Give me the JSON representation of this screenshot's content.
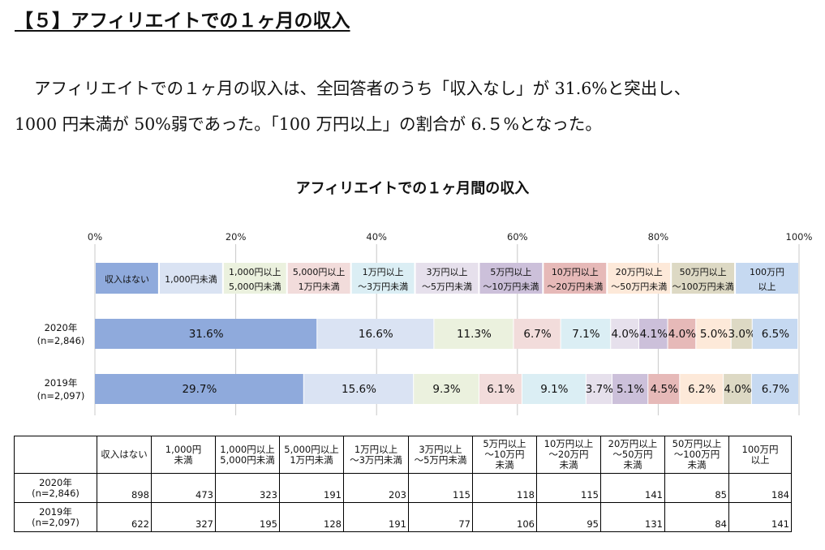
{
  "heading": "【５】アフィリエイトでの１ヶ月の収入",
  "paragraph": {
    "line1": "アフィリエイトでの１ヶ月の収入は、全回答者のうち「収入なし」が 31.6%と突出し、",
    "line2": "1000 円未満が 50%弱であった。「100 万円以上」の割合が 6.５%となった。"
  },
  "chart_data": {
    "type": "bar",
    "orientation": "horizontal-stacked-100",
    "title": "アフィリエイトでの１ヶ月間の収入",
    "x_ticks": [
      "0%",
      "20%",
      "40%",
      "60%",
      "80%",
      "100%"
    ],
    "xlim": [
      0,
      100
    ],
    "grid": true,
    "legend_position": "top",
    "legend": [
      [
        "収入はない"
      ],
      [
        "1,000円未満"
      ],
      [
        "1,000円以上",
        "5,000円未満"
      ],
      [
        "5,000円以上",
        "1万円未満"
      ],
      [
        "1万円以上",
        "～3万円未満"
      ],
      [
        "3万円以上",
        "～5万円未満"
      ],
      [
        "5万円以上",
        "～10万円未満"
      ],
      [
        "10万円以上",
        "～20万円未満"
      ],
      [
        "20万円以上",
        "～50万円未満"
      ],
      [
        "50万円以上",
        "～100万円未満"
      ],
      [
        "100万円",
        "以上"
      ]
    ],
    "colors": [
      "#8faadc",
      "#dae3f3",
      "#ebf1de",
      "#f2dcdb",
      "#dbeef4",
      "#e6e0ec",
      "#ccc0da",
      "#e6b9b8",
      "#fde9d9",
      "#ddd9c4",
      "#c6d9f1"
    ],
    "series": [
      {
        "name": "2020年",
        "sublabel": "(n=2,846)",
        "values": [
          31.6,
          16.6,
          11.3,
          6.7,
          7.1,
          4.0,
          4.1,
          4.0,
          5.0,
          3.0,
          6.5
        ],
        "labels": [
          "31.6%",
          "16.6%",
          "11.3%",
          "6.7%",
          "7.1%",
          "4.0%",
          "4.1%",
          "4.0%",
          "5.0%",
          "3.0%",
          "6.5%"
        ]
      },
      {
        "name": "2019年",
        "sublabel": "(n=2,097)",
        "values": [
          29.7,
          15.6,
          9.3,
          6.1,
          9.1,
          3.7,
          5.1,
          4.5,
          6.2,
          4.0,
          6.7
        ],
        "labels": [
          "29.7%",
          "15.6%",
          "9.3%",
          "6.1%",
          "9.1%",
          "3.7%",
          "5.1%",
          "4.5%",
          "6.2%",
          "4.0%",
          "6.7%"
        ]
      }
    ]
  },
  "table": {
    "headers": [
      "",
      "収入はない",
      "1,000円\n未満",
      "1,000円以上\n5,000円未満",
      "5,000円以上\n1万円未満",
      "1万円以上\n～3万円未満",
      "3万円以上\n～5万円未満",
      "5万円以上\n～10万円\n未満",
      "10万円以上\n～20万円\n未満",
      "20万円以上\n～50万円\n未満",
      "50万円以上\n～100万円\n未満",
      "100万円\n以上"
    ],
    "rows": [
      {
        "label": "2020年\n(n=2,846)",
        "values": [
          "898",
          "473",
          "323",
          "191",
          "203",
          "115",
          "118",
          "115",
          "141",
          "85",
          "184"
        ]
      },
      {
        "label": "2019年\n(n=2,097)",
        "values": [
          "622",
          "327",
          "195",
          "128",
          "191",
          "77",
          "106",
          "95",
          "131",
          "84",
          "141"
        ]
      }
    ]
  }
}
